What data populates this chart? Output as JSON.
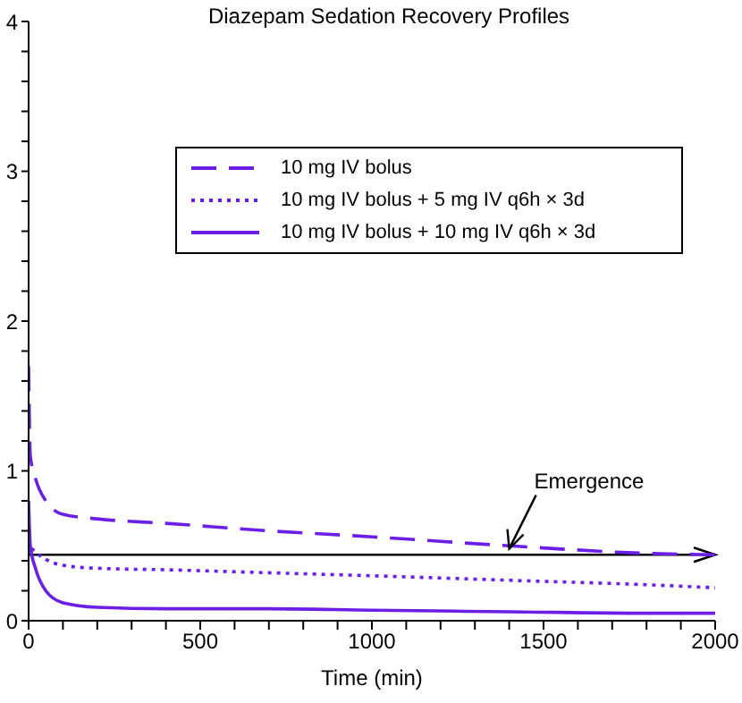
{
  "chart_data": {
    "type": "line",
    "title": "Diazepam Sedation Recovery Profiles",
    "xlabel": "Time (min)",
    "x": [
      0,
      5,
      20,
      50,
      100,
      200,
      400,
      700,
      1000,
      1400,
      1800,
      2000
    ],
    "series": [
      {
        "name": "10 mg IV bolus",
        "color": "#6a1ee6",
        "line_style": "dashed",
        "values": [
          1.7,
          1.1,
          0.95,
          0.8,
          0.71,
          0.68,
          0.65,
          0.6,
          0.56,
          0.5,
          0.45,
          0.44
        ]
      },
      {
        "name": "10 mg IV bolus + 5 mg IV q6h × 3d",
        "color": "#6a1ee6",
        "line_style": "dotted",
        "values": [
          0.6,
          0.5,
          0.46,
          0.41,
          0.37,
          0.35,
          0.34,
          0.32,
          0.3,
          0.27,
          0.24,
          0.22
        ]
      },
      {
        "name": "10 mg IV bolus + 10 mg IV q6h × 3d",
        "color": "#6a1ee6",
        "line_style": "solid",
        "values": [
          0.8,
          0.5,
          0.35,
          0.2,
          0.12,
          0.09,
          0.08,
          0.08,
          0.07,
          0.06,
          0.05,
          0.05
        ]
      }
    ],
    "xlim": [
      0,
      2000
    ],
    "xticks": [
      0,
      {
        "value": 100,
        "label": null
      },
      {
        "value": 200,
        "label": null
      },
      {
        "value": 300,
        "label": null
      },
      {
        "value": 400,
        "label": null
      },
      500,
      {
        "value": 600,
        "label": null
      },
      {
        "value": 700,
        "label": null
      },
      {
        "value": 800,
        "label": null
      },
      {
        "value": 900,
        "label": null
      },
      1000,
      {
        "value": 1100,
        "label": null
      },
      {
        "value": 1200,
        "label": null
      },
      {
        "value": 1300,
        "label": null
      },
      {
        "value": 1400,
        "label": null
      },
      1500,
      {
        "value": 1600,
        "label": null
      },
      {
        "value": 1700,
        "label": null
      },
      {
        "value": 1800,
        "label": null
      },
      {
        "value": 1900,
        "label": null
      },
      2000
    ],
    "ylim": [
      0,
      4
    ],
    "yticks": [
      0,
      {
        "value": 0.2,
        "label": null
      },
      {
        "value": 0.4,
        "label": null
      },
      {
        "value": 0.6,
        "label": null
      },
      {
        "value": 0.8,
        "label": null
      },
      1,
      {
        "value": 1.2,
        "label": null
      },
      {
        "value": 1.4,
        "label": null
      },
      {
        "value": 1.6,
        "label": null
      },
      {
        "value": 1.8,
        "label": null
      },
      2,
      {
        "value": 2.2,
        "label": null
      },
      {
        "value": 2.4,
        "label": null
      },
      {
        "value": 2.6,
        "label": null
      },
      {
        "value": 2.8,
        "label": null
      },
      3,
      {
        "value": 3.2,
        "label": null
      },
      {
        "value": 3.4,
        "label": null
      },
      {
        "value": 3.6,
        "label": null
      },
      {
        "value": 3.8,
        "label": null
      },
      4
    ],
    "ref_lines": [
      {
        "axis": "y",
        "value": 0.44,
        "color": "#000000"
      }
    ],
    "annotations": [
      {
        "text": "Emergence",
        "x": 1400,
        "y": 0.48
      }
    ],
    "legend": "top right",
    "marker": "none"
  }
}
